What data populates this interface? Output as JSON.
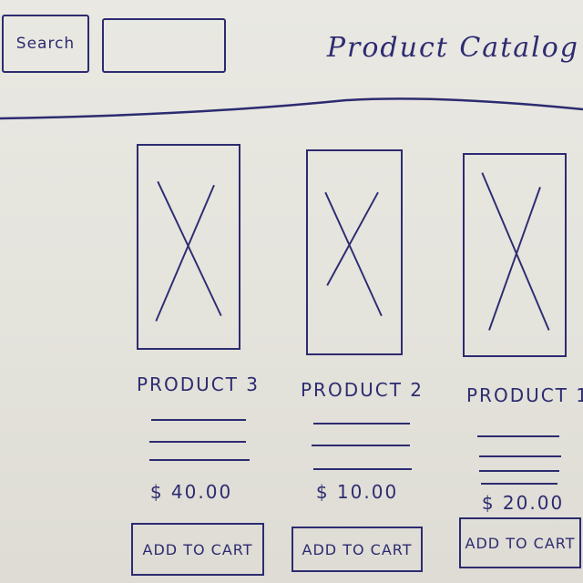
{
  "header": {
    "search_label": "Search",
    "search_value": "",
    "title": "Product Catalog"
  },
  "products": [
    {
      "name": "PRODUCT 3",
      "price": "$ 40.00",
      "cart_label": "ADD TO CART"
    },
    {
      "name": "PRODUCT 2",
      "price": "$ 10.00",
      "cart_label": "ADD TO CART"
    },
    {
      "name": "PRODUCT 1",
      "price": "$ 20.00",
      "cart_label": "ADD TO CART"
    }
  ],
  "icons": {
    "image_placeholder": "image-placeholder-icon"
  },
  "colors": {
    "ink": "#2d2b70",
    "paper": "#e6e5de"
  }
}
